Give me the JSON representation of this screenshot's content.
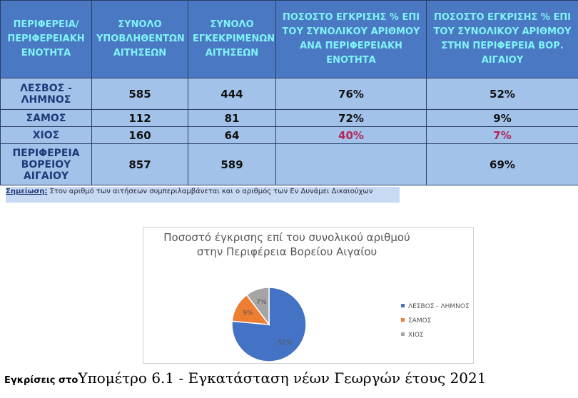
{
  "table": {
    "header": [
      "ΠΕΡΙΦΕΡΕΙΑ/ ΠΕΡΙΦΕΡΕΙΑΚΗ ΕΝΟΤΗΤΑ",
      "ΣΥΝΟΛΟ ΥΠΟΒΛΗΘΕΝΤΩΝ ΑΙΤΗΣΕΩΝ",
      "ΣΥΝΟΛΟ ΕΓΚΕΚΡΙΜΕΝΩΝ ΑΙΤΗΣΕΩΝ",
      "ΠΟΣΟΣΤΟ ΕΓΚΡΙΣΗΣ % ΕΠΙ ΤΟΥ ΣΥΝΟΛΙΚΟΥ ΑΡΙΘΜΟΥ ΑΝΑ ΠΕΡΙΦΕΡΕΙΑΚΗ ΕΝΟΤΗΤΑ",
      "ΠΟΣΟΣΤΟ ΕΓΚΡΙΣΗΣ % ΕΠΙ ΤΟΥ ΣΥΝΟΛΙΚΟΥ ΑΡΙΘΜΟΥ ΣΤΗΝ ΠΕΡΙΦΕΡΕΙΑ ΒΟΡ. ΑΙΓΑΙΟΥ"
    ],
    "rows": [
      [
        "ΛΕΣΒΟΣ - ΛΗΜΝΟΣ",
        "585",
        "444",
        "76%",
        "52%"
      ],
      [
        "ΣΑΜΟΣ",
        "112",
        "81",
        "72%",
        "9%"
      ],
      [
        "ΧΙΟΣ",
        "160",
        "64",
        "40%",
        "7%"
      ],
      [
        "ΠΕΡΙΦΕΡΕΙΑ ΒΟΡΕΙΟΥ ΑΙΓΑΙΟΥ",
        "857",
        "589",
        null,
        "69%"
      ]
    ]
  },
  "note": {
    "label": "Σημείωση:",
    "text": "Στον αριθμό των αιτήσεων συμπεριλαμβάνεται και ο αριθμός των Εν Δυνάμει Δικαιούχων"
  },
  "caption": {
    "lead": "Εγκρίσεις στο",
    "title": "Υπομέτρο 6.1 - Εγκατάσταση νέων Γεωργών έτους 2021"
  },
  "chart_data": {
    "type": "pie",
    "title": "Ποσοστό έγκρισης επί του συνολικού αριθμού στην Περιφέρεια Βορείου Αιγαίου",
    "categories": [
      "ΛΕΣΒΟΣ - ΛΗΜΝΟΣ",
      "ΣΑΜΟΣ",
      "ΧΙΟΣ"
    ],
    "values": [
      52,
      9,
      7
    ],
    "value_labels": [
      "52%",
      "9%",
      "7%"
    ],
    "colors": [
      "#4472c4",
      "#ed7d31",
      "#a5a5a5"
    ],
    "legend": "right"
  }
}
